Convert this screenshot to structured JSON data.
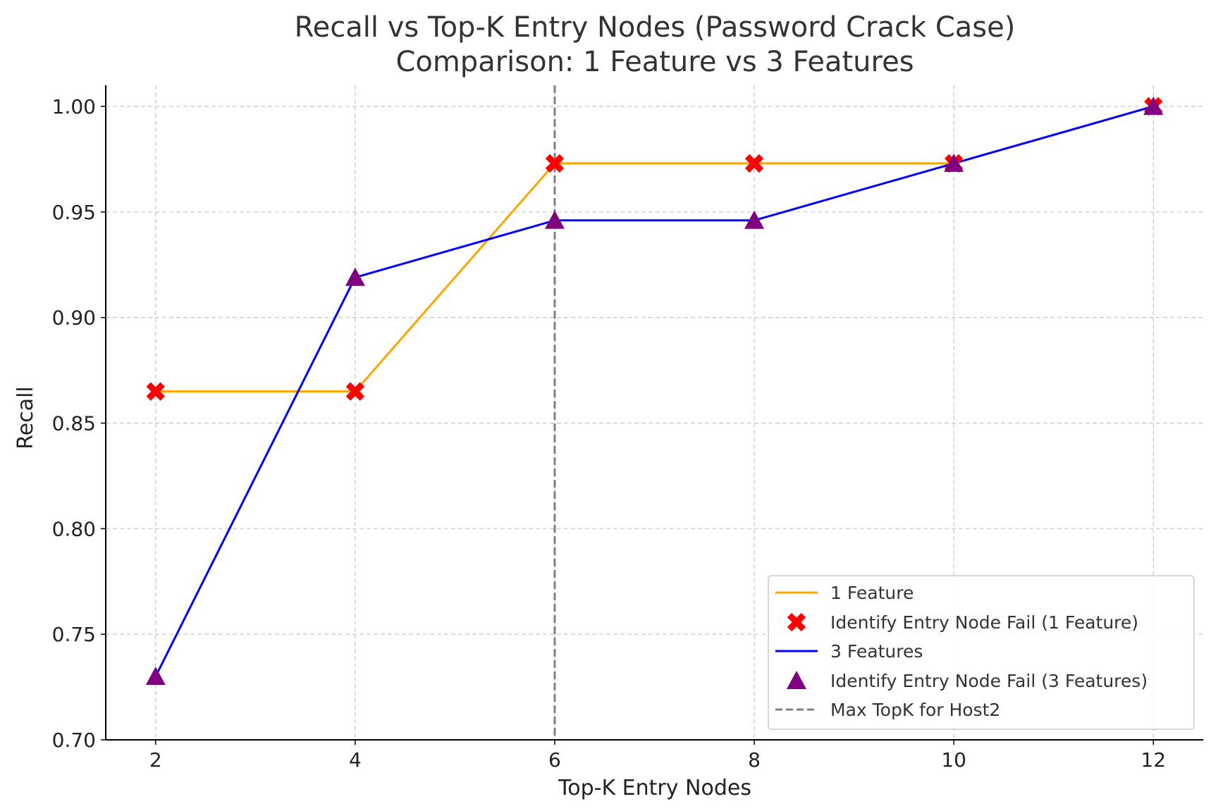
{
  "chart_data": {
    "type": "line",
    "title": [
      "Recall vs Top-K Entry Nodes (Password Crack Case)",
      "Comparison: 1 Feature vs 3 Features"
    ],
    "xlabel": "Top-K Entry Nodes",
    "ylabel": "Recall",
    "xlim": [
      1.5,
      12.5
    ],
    "ylim": [
      0.7,
      1.01
    ],
    "xticks": [
      2,
      4,
      6,
      8,
      10,
      12
    ],
    "xtick_labels": [
      "2",
      "4",
      "6",
      "8",
      "10",
      "12"
    ],
    "yticks": [
      0.7,
      0.75,
      0.8,
      0.85,
      0.9,
      0.95,
      1.0
    ],
    "ytick_labels": [
      "0.70",
      "0.75",
      "0.80",
      "0.85",
      "0.90",
      "0.95",
      "1.00"
    ],
    "grid": true,
    "legend_position": "lower-right",
    "x": [
      2,
      4,
      6,
      8,
      10,
      12
    ],
    "series": [
      {
        "name": "1 Feature",
        "values": [
          0.865,
          0.865,
          0.973,
          0.973,
          0.973,
          1.0
        ],
        "color": "#FFA500",
        "marker": "x",
        "marker_color": "#FF0000",
        "marker_legend": "Identify Entry Node Fail (1 Feature)"
      },
      {
        "name": "3 Features",
        "values": [
          0.73,
          0.919,
          0.946,
          0.946,
          0.973,
          1.0
        ],
        "color": "#0000FF",
        "marker": "triangle",
        "marker_color": "#800080",
        "marker_legend": "Identify Entry Node Fail (3 Features)"
      }
    ],
    "vlines": [
      {
        "x": 6,
        "label": "Max TopK for Host2",
        "color": "#808080",
        "style": "dashed"
      }
    ],
    "legend": [
      "1 Feature",
      "Identify Entry Node Fail (1 Feature)",
      "3 Features",
      "Identify Entry Node Fail (3 Features)",
      "Max TopK for Host2"
    ]
  }
}
